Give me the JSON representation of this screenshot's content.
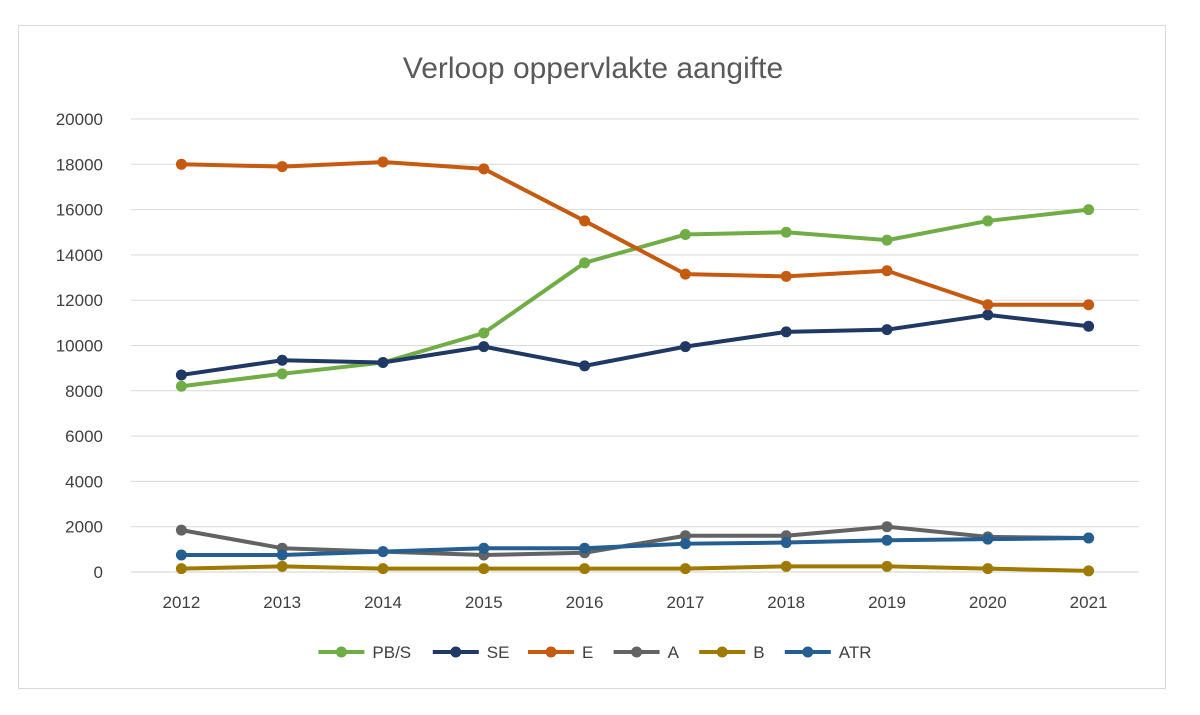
{
  "chart_data": {
    "type": "line",
    "title": "Verloop oppervlakte aangifte",
    "categories": [
      "2012",
      "2013",
      "2014",
      "2015",
      "2016",
      "2017",
      "2018",
      "2019",
      "2020",
      "2021"
    ],
    "ylim": [
      0,
      20000
    ],
    "yticks": [
      0,
      2000,
      4000,
      6000,
      8000,
      10000,
      12000,
      14000,
      16000,
      18000,
      20000
    ],
    "grid": true,
    "legend_position": "bottom",
    "series": [
      {
        "name": "PB/S",
        "color": "#70ad47",
        "values": [
          8200,
          8750,
          9250,
          10550,
          13650,
          14900,
          15000,
          14650,
          15500,
          16000
        ]
      },
      {
        "name": "SE",
        "color": "#203864",
        "values": [
          8700,
          9350,
          9250,
          9950,
          9100,
          9950,
          10600,
          10700,
          11350,
          10850
        ]
      },
      {
        "name": "E",
        "color": "#c55a11",
        "values": [
          18000,
          17900,
          18100,
          17800,
          15500,
          13150,
          13050,
          13300,
          11800,
          11800
        ]
      },
      {
        "name": "A",
        "color": "#636363",
        "values": [
          1850,
          1050,
          900,
          750,
          850,
          1600,
          1600,
          2000,
          1550,
          1500
        ]
      },
      {
        "name": "B",
        "color": "#9e7a00",
        "values": [
          150,
          250,
          150,
          150,
          150,
          150,
          250,
          250,
          150,
          50
        ]
      },
      {
        "name": "ATR",
        "color": "#255e91",
        "values": [
          750,
          750,
          900,
          1050,
          1050,
          1250,
          1300,
          1400,
          1450,
          1500
        ]
      }
    ]
  }
}
